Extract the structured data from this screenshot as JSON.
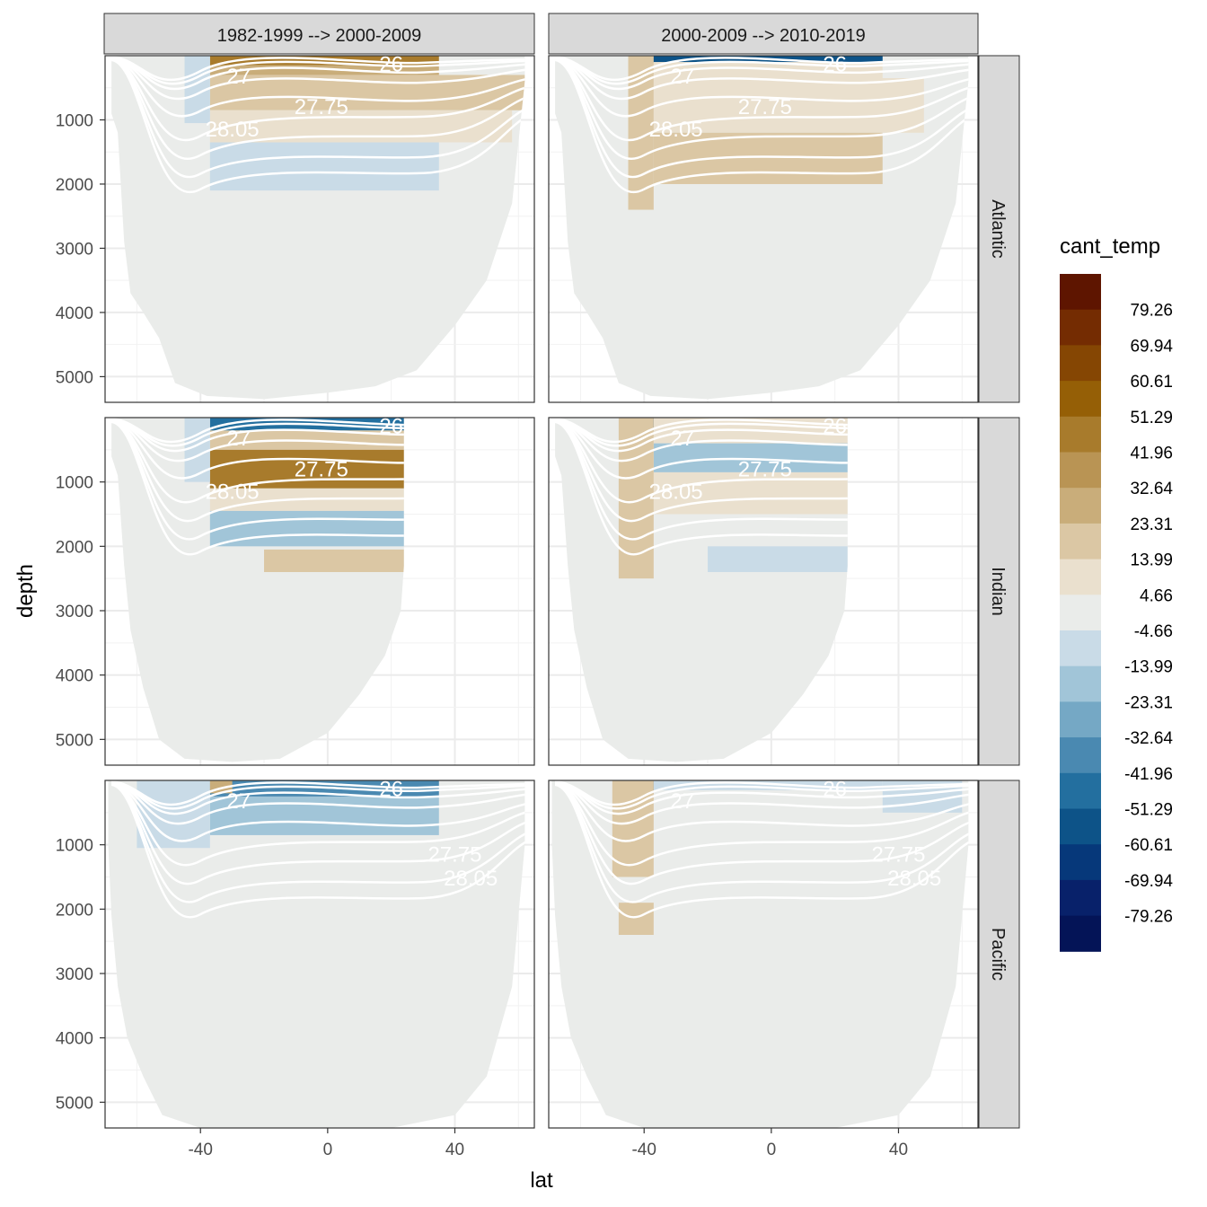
{
  "chart_data": {
    "type": "heatmap",
    "xlabel": "lat",
    "ylabel": "depth",
    "xlim": [
      -70,
      65
    ],
    "ylim": [
      0,
      5400
    ],
    "x_ticks": [
      "-40",
      "0",
      "40"
    ],
    "y_ticks": [
      "1000",
      "2000",
      "3000",
      "4000",
      "5000"
    ],
    "columns": [
      "1982-1999 --> 2000-2009",
      "2000-2009 --> 2010-2019"
    ],
    "rows": [
      "Atlantic",
      "Indian",
      "Pacific"
    ],
    "legend": {
      "title": "cant_temp",
      "labels": [
        "79.26",
        "69.94",
        "60.61",
        "51.29",
        "41.96",
        "32.64",
        "23.31",
        "13.99",
        "4.66",
        "-4.66",
        "-13.99",
        "-23.31",
        "-32.64",
        "-41.96",
        "-51.29",
        "-60.61",
        "-69.94",
        "-79.26"
      ],
      "colors": [
        "#5e1500",
        "#742c02",
        "#854603",
        "#955f06",
        "#a87b2c",
        "#b99454",
        "#c9ad7a",
        "#dbc7a4",
        "#eae0ce",
        "#eaecea",
        "#c9dbe7",
        "#a1c5d8",
        "#75a8c5",
        "#4a89b1",
        "#236f9f",
        "#0d5388",
        "#06387a",
        "#08216a",
        "#041457"
      ]
    },
    "isopycnal_labels": [
      "26",
      "27",
      "27.75",
      "28.05"
    ],
    "panels": [
      {
        "column": "1982-1999 --> 2000-2009",
        "row": "Atlantic",
        "bottom_profile": [
          [
            -68,
            900
          ],
          [
            -66,
            1200
          ],
          [
            -64,
            2900
          ],
          [
            -62,
            3700
          ],
          [
            -58,
            4000
          ],
          [
            -53,
            4400
          ],
          [
            -48,
            5100
          ],
          [
            -38,
            5300
          ],
          [
            -20,
            5350
          ],
          [
            0,
            5250
          ],
          [
            15,
            5150
          ],
          [
            28,
            4900
          ],
          [
            40,
            4200
          ],
          [
            50,
            3500
          ],
          [
            58,
            2300
          ],
          [
            62,
            400
          ]
        ],
        "bands": [
          {
            "x": [
              -37,
              35
            ],
            "depth": [
              0,
              150
            ],
            "value": 45
          },
          {
            "x": [
              -37,
              35
            ],
            "depth": [
              150,
              300
            ],
            "value": 30
          },
          {
            "x": [
              -37,
              62
            ],
            "depth": [
              300,
              850
            ],
            "value": 14
          },
          {
            "x": [
              -37,
              58
            ],
            "depth": [
              850,
              1350
            ],
            "value": 8
          },
          {
            "x": [
              -37,
              35
            ],
            "depth": [
              1350,
              2100
            ],
            "value": -12
          },
          {
            "x": [
              -45,
              -37
            ],
            "depth": [
              0,
              1050
            ],
            "value": -10
          }
        ]
      },
      {
        "column": "2000-2009 --> 2010-2019",
        "row": "Atlantic",
        "bottom_profile": [
          [
            -68,
            900
          ],
          [
            -66,
            1200
          ],
          [
            -64,
            2900
          ],
          [
            -62,
            3700
          ],
          [
            -58,
            4000
          ],
          [
            -53,
            4400
          ],
          [
            -48,
            5100
          ],
          [
            -38,
            5300
          ],
          [
            -20,
            5350
          ],
          [
            0,
            5250
          ],
          [
            15,
            5150
          ],
          [
            28,
            4900
          ],
          [
            40,
            4200
          ],
          [
            50,
            3500
          ],
          [
            58,
            2300
          ],
          [
            62,
            400
          ]
        ],
        "bands": [
          {
            "x": [
              -40,
              35
            ],
            "depth": [
              0,
              100
            ],
            "value": -55
          },
          {
            "x": [
              -37,
              35
            ],
            "depth": [
              100,
              350
            ],
            "value": 8
          },
          {
            "x": [
              -37,
              48
            ],
            "depth": [
              350,
              1200
            ],
            "value": 10
          },
          {
            "x": [
              -37,
              35
            ],
            "depth": [
              1200,
              2000
            ],
            "value": 20
          },
          {
            "x": [
              -45,
              -37
            ],
            "depth": [
              0,
              2400
            ],
            "value": 16
          }
        ]
      },
      {
        "column": "1982-1999 --> 2000-2009",
        "row": "Indian",
        "bottom_profile": [
          [
            -68,
            600
          ],
          [
            -66,
            900
          ],
          [
            -64,
            2300
          ],
          [
            -62,
            3300
          ],
          [
            -58,
            4200
          ],
          [
            -53,
            5000
          ],
          [
            -45,
            5300
          ],
          [
            -30,
            5350
          ],
          [
            -15,
            5300
          ],
          [
            0,
            4900
          ],
          [
            10,
            4300
          ],
          [
            18,
            3700
          ],
          [
            23,
            3000
          ],
          [
            24,
            2300
          ]
        ],
        "bands": [
          {
            "x": [
              -37,
              24
            ],
            "depth": [
              0,
              200
            ],
            "value": -45
          },
          {
            "x": [
              -37,
              24
            ],
            "depth": [
              200,
              500
            ],
            "value": 14
          },
          {
            "x": [
              -37,
              24
            ],
            "depth": [
              500,
              1100
            ],
            "value": 45
          },
          {
            "x": [
              -37,
              24
            ],
            "depth": [
              1100,
              1450
            ],
            "value": 8
          },
          {
            "x": [
              -37,
              24
            ],
            "depth": [
              1450,
              2000
            ],
            "value": -18
          },
          {
            "x": [
              -20,
              24
            ],
            "depth": [
              2050,
              2400
            ],
            "value": 16
          },
          {
            "x": [
              -45,
              -37
            ],
            "depth": [
              0,
              1000
            ],
            "value": -12
          }
        ]
      },
      {
        "column": "2000-2009 --> 2010-2019",
        "row": "Indian",
        "bottom_profile": [
          [
            -68,
            600
          ],
          [
            -66,
            900
          ],
          [
            -64,
            2300
          ],
          [
            -62,
            3300
          ],
          [
            -58,
            4200
          ],
          [
            -53,
            5000
          ],
          [
            -45,
            5300
          ],
          [
            -30,
            5350
          ],
          [
            -15,
            5300
          ],
          [
            0,
            4900
          ],
          [
            10,
            4300
          ],
          [
            18,
            3700
          ],
          [
            23,
            3000
          ],
          [
            24,
            2300
          ]
        ],
        "bands": [
          {
            "x": [
              -40,
              -36
            ],
            "depth": [
              0,
              200
            ],
            "value": -55
          },
          {
            "x": [
              -37,
              24
            ],
            "depth": [
              0,
              400
            ],
            "value": 8
          },
          {
            "x": [
              -37,
              24
            ],
            "depth": [
              400,
              850
            ],
            "value": -20
          },
          {
            "x": [
              -37,
              24
            ],
            "depth": [
              850,
              1500
            ],
            "value": 8
          },
          {
            "x": [
              -20,
              24
            ],
            "depth": [
              2000,
              2400
            ],
            "value": -12
          },
          {
            "x": [
              -48,
              -37
            ],
            "depth": [
              0,
              2500
            ],
            "value": 18
          }
        ]
      },
      {
        "column": "1982-1999 --> 2000-2009",
        "row": "Pacific",
        "bottom_profile": [
          [
            -69,
            1000
          ],
          [
            -68,
            2100
          ],
          [
            -66,
            3200
          ],
          [
            -63,
            4000
          ],
          [
            -58,
            4600
          ],
          [
            -52,
            5200
          ],
          [
            -40,
            5400
          ],
          [
            -20,
            5400
          ],
          [
            0,
            5400
          ],
          [
            20,
            5400
          ],
          [
            40,
            5200
          ],
          [
            50,
            4600
          ],
          [
            58,
            3200
          ],
          [
            62,
            1000
          ]
        ],
        "bands": [
          {
            "x": [
              -37,
              35
            ],
            "depth": [
              0,
              250
            ],
            "value": -40
          },
          {
            "x": [
              -37,
              35
            ],
            "depth": [
              250,
              850
            ],
            "value": -15
          },
          {
            "x": [
              -60,
              -37
            ],
            "depth": [
              0,
              1050
            ],
            "value": -10
          },
          {
            "x": [
              -37,
              -30
            ],
            "depth": [
              0,
              200
            ],
            "value": 30
          }
        ]
      },
      {
        "column": "2000-2009 --> 2010-2019",
        "row": "Pacific",
        "bottom_profile": [
          [
            -69,
            1000
          ],
          [
            -68,
            2100
          ],
          [
            -66,
            3200
          ],
          [
            -63,
            4000
          ],
          [
            -58,
            4600
          ],
          [
            -52,
            5200
          ],
          [
            -40,
            5400
          ],
          [
            -20,
            5400
          ],
          [
            0,
            5400
          ],
          [
            20,
            5400
          ],
          [
            40,
            5200
          ],
          [
            50,
            4600
          ],
          [
            58,
            3200
          ],
          [
            62,
            1000
          ]
        ],
        "bands": [
          {
            "x": [
              -45,
              -37
            ],
            "depth": [
              0,
              200
            ],
            "value": -55
          },
          {
            "x": [
              -37,
              35
            ],
            "depth": [
              0,
              150
            ],
            "value": -12
          },
          {
            "x": [
              -50,
              -37
            ],
            "depth": [
              0,
              1500
            ],
            "value": 22
          },
          {
            "x": [
              -48,
              -37
            ],
            "depth": [
              1900,
              2400
            ],
            "value": 14
          },
          {
            "x": [
              35,
              60
            ],
            "depth": [
              0,
              500
            ],
            "value": -12
          }
        ]
      }
    ]
  }
}
